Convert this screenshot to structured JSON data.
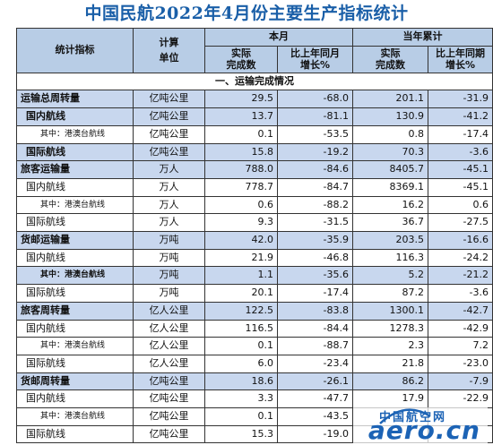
{
  "title": "中国民航2022年4月份主要生产指标统计",
  "header": {
    "indicator": "统计指标",
    "unit_line1": "计算",
    "unit_line2": "单位",
    "month": "本月",
    "ytd": "当年累计",
    "actual_l1": "实际",
    "actual_l2": "完成数",
    "yoy_month_l1": "比上年同月",
    "yoy_month_l2": "增长%",
    "actual2_l1": "实际",
    "actual2_l2": "完成数",
    "yoy_period_l1": "比上年同期",
    "yoy_period_l2": "增长%"
  },
  "section": "一、运输完成情况",
  "rows": [
    {
      "name": "运输总周转量",
      "unit": "亿吨公里",
      "m": "29.5",
      "mg": "-68.0",
      "y": "201.1",
      "yg": "-31.9",
      "level": 0,
      "shade": true
    },
    {
      "name": "国内航线",
      "unit": "亿吨公里",
      "m": "13.7",
      "mg": "-81.1",
      "y": "130.9",
      "yg": "-41.2",
      "level": 1,
      "shade": true
    },
    {
      "name": "其中：港澳台航线",
      "unit": "亿吨公里",
      "m": "0.1",
      "mg": "-53.5",
      "y": "0.8",
      "yg": "-17.4",
      "level": 2,
      "shade": false
    },
    {
      "name": "国际航线",
      "unit": "亿吨公里",
      "m": "15.8",
      "mg": "-19.2",
      "y": "70.3",
      "yg": "-3.6",
      "level": 1,
      "shade": true
    },
    {
      "name": "旅客运输量",
      "unit": "万人",
      "m": "788.0",
      "mg": "-84.6",
      "y": "8405.7",
      "yg": "-45.1",
      "level": 0,
      "shade": true
    },
    {
      "name": "国内航线",
      "unit": "万人",
      "m": "778.7",
      "mg": "-84.7",
      "y": "8369.1",
      "yg": "-45.1",
      "level": 1,
      "shade": false
    },
    {
      "name": "其中：港澳台航线",
      "unit": "万人",
      "m": "0.6",
      "mg": "-88.2",
      "y": "16.2",
      "yg": "0.6",
      "level": 2,
      "shade": false
    },
    {
      "name": "国际航线",
      "unit": "万人",
      "m": "9.3",
      "mg": "-31.5",
      "y": "36.7",
      "yg": "-27.5",
      "level": 1,
      "shade": false
    },
    {
      "name": "货邮运输量",
      "unit": "万吨",
      "m": "42.0",
      "mg": "-35.9",
      "y": "203.5",
      "yg": "-16.6",
      "level": 0,
      "shade": true
    },
    {
      "name": "国内航线",
      "unit": "万吨",
      "m": "21.9",
      "mg": "-46.8",
      "y": "116.3",
      "yg": "-24.2",
      "level": 1,
      "shade": false
    },
    {
      "name": "其中：港澳台航线",
      "unit": "万吨",
      "m": "1.1",
      "mg": "-35.6",
      "y": "5.2",
      "yg": "-21.2",
      "level": 2,
      "shade": true
    },
    {
      "name": "国际航线",
      "unit": "万吨",
      "m": "20.1",
      "mg": "-17.4",
      "y": "87.2",
      "yg": "-3.6",
      "level": 1,
      "shade": false
    },
    {
      "name": "旅客周转量",
      "unit": "亿人公里",
      "m": "122.5",
      "mg": "-83.8",
      "y": "1300.1",
      "yg": "-42.7",
      "level": 0,
      "shade": true
    },
    {
      "name": "国内航线",
      "unit": "亿人公里",
      "m": "116.5",
      "mg": "-84.4",
      "y": "1278.3",
      "yg": "-42.9",
      "level": 1,
      "shade": false
    },
    {
      "name": "其中：港澳台航线",
      "unit": "亿人公里",
      "m": "0.1",
      "mg": "-88.7",
      "y": "2.3",
      "yg": "7.2",
      "level": 2,
      "shade": false
    },
    {
      "name": "国际航线",
      "unit": "亿人公里",
      "m": "6.0",
      "mg": "-23.4",
      "y": "21.8",
      "yg": "-23.0",
      "level": 1,
      "shade": false
    },
    {
      "name": "货邮周转量",
      "unit": "亿吨公里",
      "m": "18.6",
      "mg": "-26.1",
      "y": "86.2",
      "yg": "-7.9",
      "level": 0,
      "shade": true
    },
    {
      "name": "国内航线",
      "unit": "亿吨公里",
      "m": "3.3",
      "mg": "-47.7",
      "y": "17.9",
      "yg": "-22.9",
      "level": 1,
      "shade": false
    },
    {
      "name": "其中：港澳台航线",
      "unit": "亿吨公里",
      "m": "0.1",
      "mg": "-43.5",
      "y": "",
      "yg": "",
      "level": 2,
      "shade": false
    },
    {
      "name": "国际航线",
      "unit": "亿吨公里",
      "m": "15.3",
      "mg": "-19.0",
      "y": "",
      "yg": "",
      "level": 1,
      "shade": false
    }
  ],
  "watermark": {
    "cn": "中国航空网",
    "en": "aero.cn"
  }
}
